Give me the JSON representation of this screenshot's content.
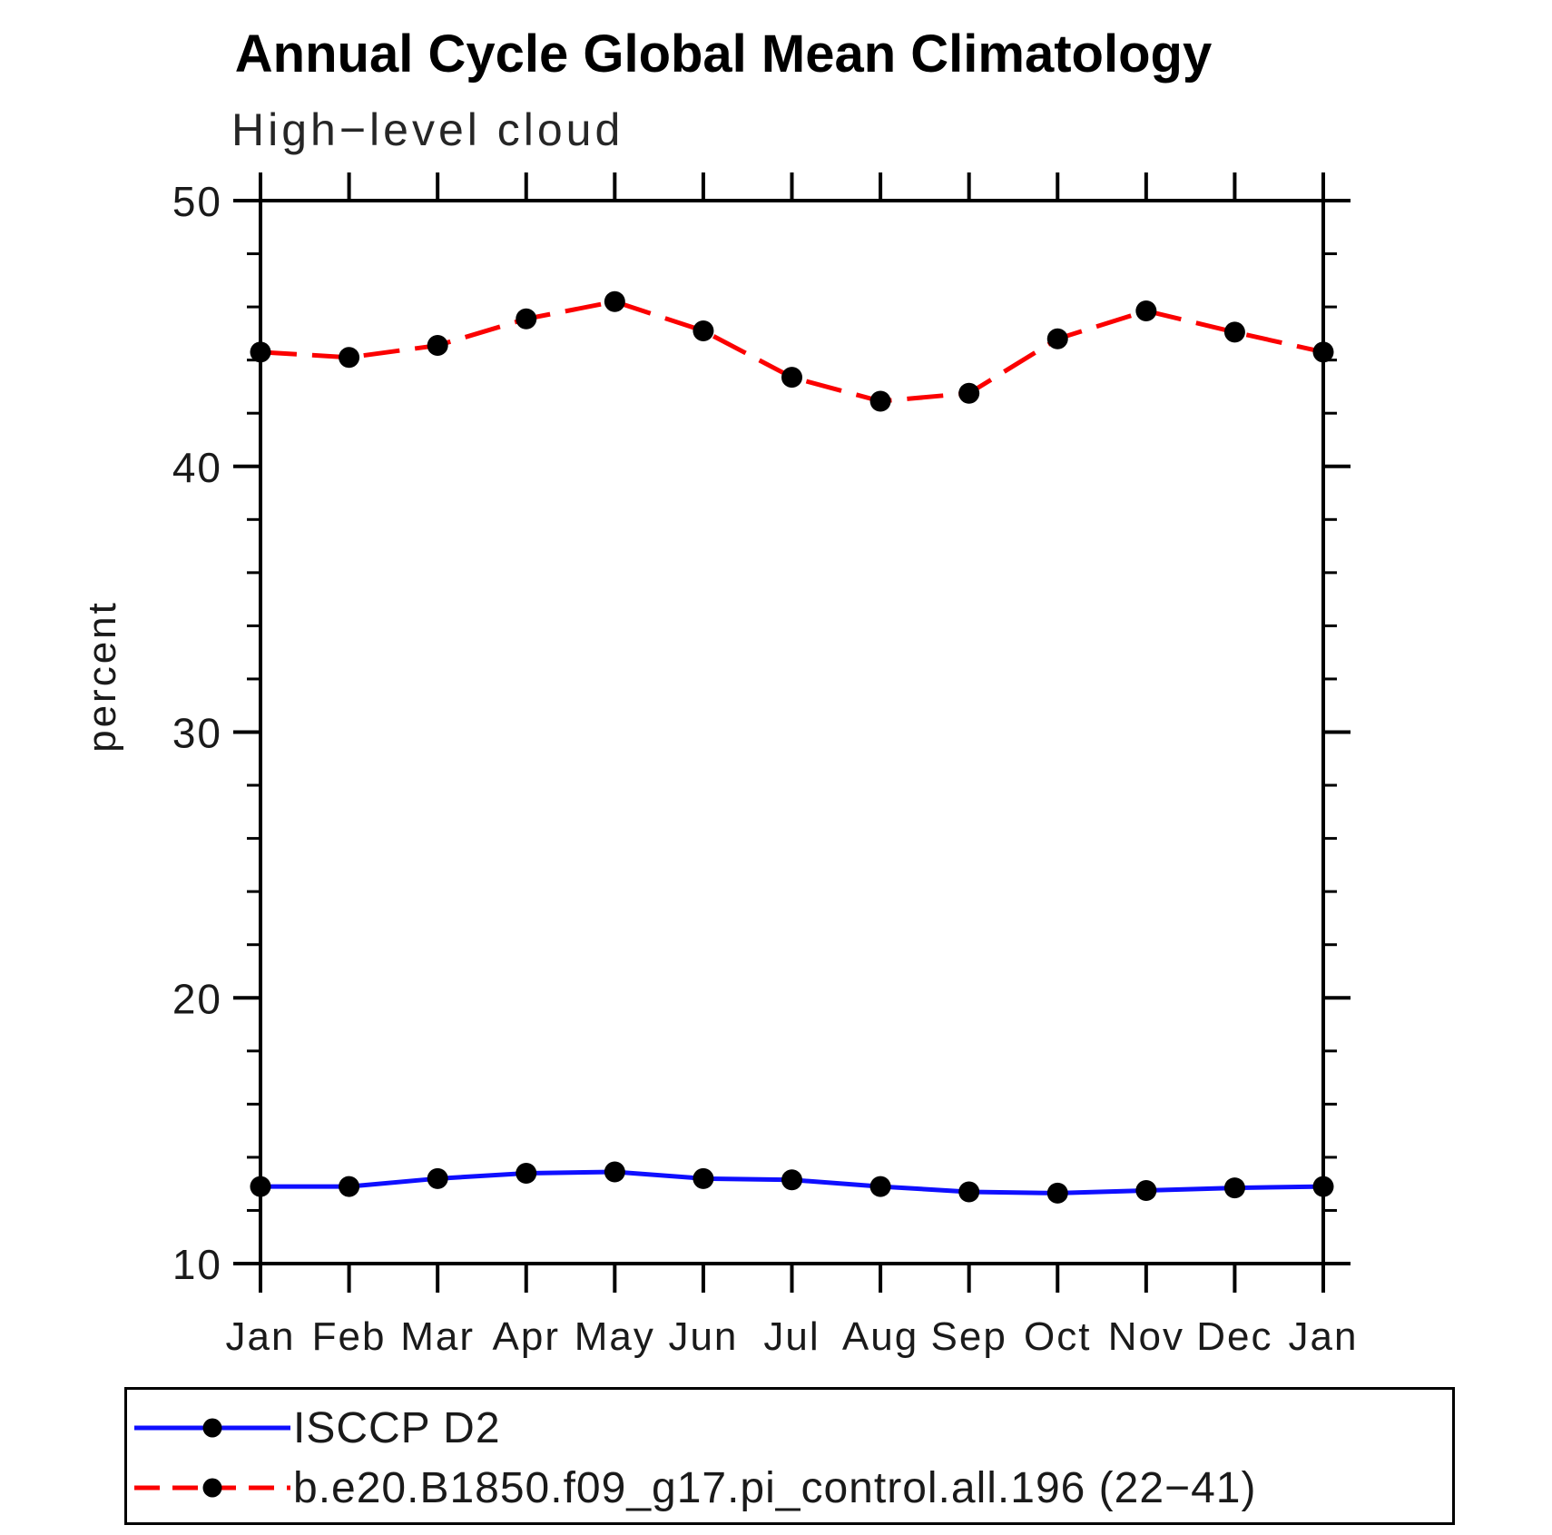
{
  "chart_data": {
    "type": "line",
    "title": "Annual Cycle Global Mean Climatology",
    "subtitle": "High−level cloud",
    "ylabel": "percent",
    "xlabel": "",
    "categories": [
      "Jan",
      "Feb",
      "Mar",
      "Apr",
      "May",
      "Jun",
      "Jul",
      "Aug",
      "Sep",
      "Oct",
      "Nov",
      "Dec",
      "Jan"
    ],
    "ylim": [
      10,
      50
    ],
    "ytick_major": [
      10,
      20,
      30,
      40,
      50
    ],
    "ytick_minor": [
      12,
      14,
      16,
      18,
      22,
      24,
      26,
      28,
      32,
      34,
      36,
      38,
      42,
      44,
      46,
      48
    ],
    "grid": false,
    "legend_position": "bottom-left",
    "axis_color": "#000000",
    "marker_color": "#000000",
    "series": [
      {
        "name": "ISCCP D2",
        "color": "#0f0fff",
        "style": "solid",
        "values": [
          12.9,
          12.9,
          13.2,
          13.4,
          13.45,
          13.2,
          13.15,
          12.9,
          12.7,
          12.65,
          12.75,
          12.85,
          12.9
        ]
      },
      {
        "name": "b.e20.B1850.f09_g17.pi_control.all.196 (22−41)",
        "color": "#fb0000",
        "style": "dashed",
        "values": [
          44.3,
          44.1,
          44.55,
          45.55,
          46.2,
          45.1,
          43.35,
          42.45,
          42.75,
          44.8,
          45.85,
          45.05,
          44.3
        ]
      }
    ]
  }
}
